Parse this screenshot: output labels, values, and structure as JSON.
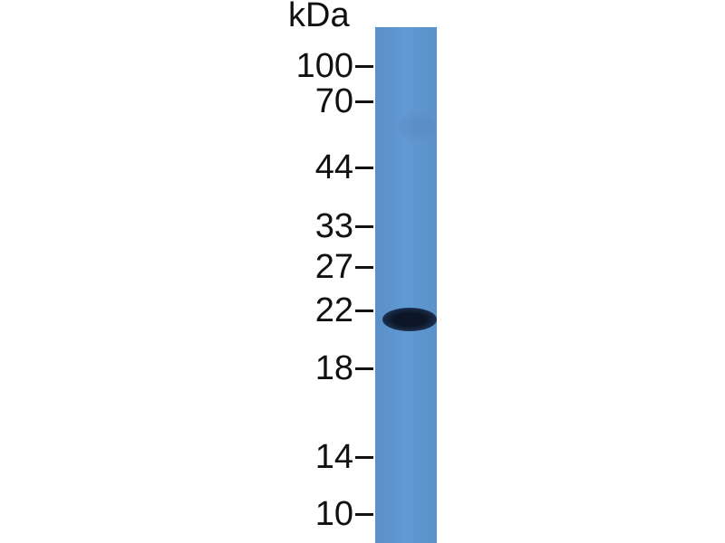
{
  "unit_label": "kDa",
  "markers": [
    {
      "label": "100",
      "kda": 100
    },
    {
      "label": "70",
      "kda": 70
    },
    {
      "label": "44",
      "kda": 44
    },
    {
      "label": "33",
      "kda": 33
    },
    {
      "label": "27",
      "kda": 27
    },
    {
      "label": "22",
      "kda": 22
    },
    {
      "label": "18",
      "kda": 18
    },
    {
      "label": "14",
      "kda": 14
    },
    {
      "label": "10",
      "kda": 10
    }
  ],
  "colors": {
    "lane": "#5b93cc",
    "band": "#0c1626",
    "text": "#111111"
  }
}
